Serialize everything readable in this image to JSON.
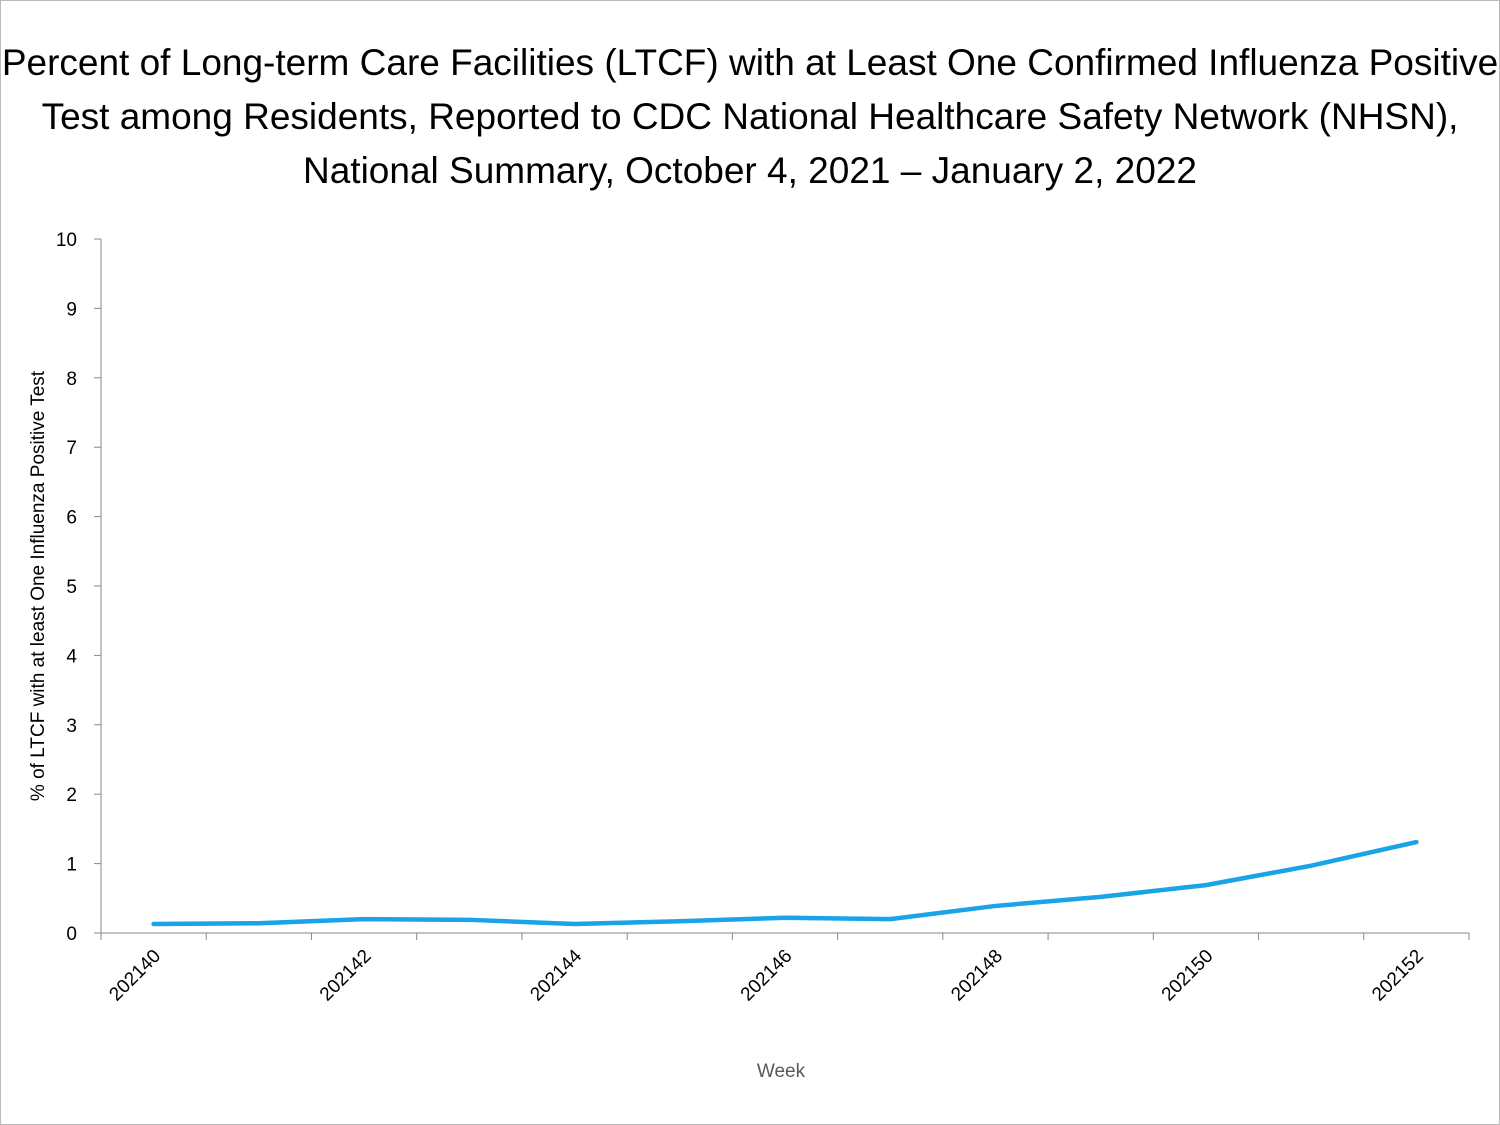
{
  "chart_data": {
    "type": "line",
    "title": "Percent of Long-term Care Facilities (LTCF) with at Least One Confirmed Influenza Positive Test among Residents, Reported to CDC National Healthcare Safety Network (NHSN), National Summary, October 4, 2021 – January 2, 2022",
    "x_label": "Week",
    "y_label": "% of LTCF with at least One Influenza Positive Test",
    "categories": [
      "202140",
      null,
      "202142",
      null,
      "202144",
      null,
      "202146",
      null,
      "202148",
      null,
      "202150",
      null,
      "202152"
    ],
    "values": [
      0.13,
      0.14,
      0.2,
      0.19,
      0.13,
      0.17,
      0.22,
      0.2,
      0.39,
      0.52,
      0.69,
      0.97,
      1.31
    ],
    "color": "#1aa3e6",
    "ylim": [
      0,
      10
    ],
    "yticks": [
      0,
      1,
      2,
      3,
      4,
      5,
      6,
      7,
      8,
      9,
      10
    ],
    "grid": false
  }
}
